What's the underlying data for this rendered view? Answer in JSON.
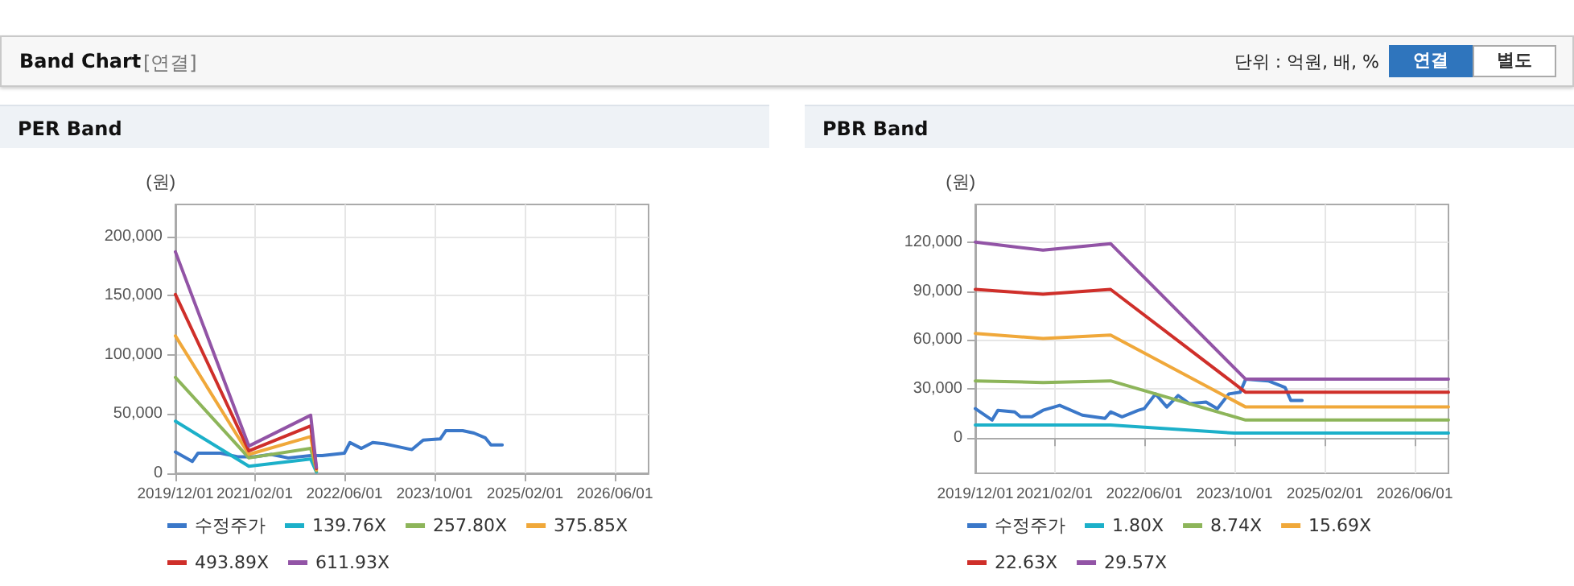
{
  "chart_data": [
    {
      "type": "other",
      "title": "Band Chart",
      "subtitle": "[연결]",
      "annotations": [
        "단위 : 억원, 배, %",
        "연결",
        "별도"
      ]
    },
    {
      "type": "line",
      "title": "PER Band",
      "ylabel": "(원)",
      "xlim": [
        "2019-12-01",
        "2026-12-01"
      ],
      "ylim": [
        0,
        227000
      ],
      "xticks": [
        {
          "value": "2019-12-01",
          "label": "2019/12/01"
        },
        {
          "value": "2021-02-01",
          "label": "2021/02/01"
        },
        {
          "value": "2022-06-01",
          "label": "2022/06/01"
        },
        {
          "value": "2023-10-01",
          "label": "2023/10/01"
        },
        {
          "value": "2025-02-01",
          "label": "2025/02/01"
        },
        {
          "value": "2026-06-01",
          "label": "2026/06/01"
        }
      ],
      "yticks": [
        0,
        {
          "value": 50000,
          "label": "50,000"
        },
        {
          "value": 100000,
          "label": "100,000"
        },
        {
          "value": 150000,
          "label": "150,000"
        },
        {
          "value": 200000,
          "label": "200,000"
        }
      ],
      "grid": true,
      "legend": "bottom",
      "marker": "none",
      "line_style": "solid",
      "series": [
        {
          "name": "수정주가",
          "color": "#3b78c9",
          "x": [
            "2019-12",
            "2020-03",
            "2020-04",
            "2020-08",
            "2020-11",
            "2021-02",
            "2021-05",
            "2021-08",
            "2021-12",
            "2022-02",
            "2022-06",
            "2022-07",
            "2022-09",
            "2022-11",
            "2023-01",
            "2023-04",
            "2023-06",
            "2023-08",
            "2023-11",
            "2023-12",
            "2024-03",
            "2024-05",
            "2024-07",
            "2024-08",
            "2024-10"
          ],
          "values": [
            18000,
            10000,
            17000,
            17000,
            14000,
            14000,
            16000,
            13000,
            15000,
            15000,
            17000,
            26000,
            21000,
            26000,
            25000,
            22000,
            20000,
            28000,
            29000,
            36000,
            36000,
            34000,
            30000,
            24000,
            24000
          ]
        },
        {
          "name": "139.76X",
          "color": "#1cb0c9",
          "x": [
            "2019-12",
            "2021-01",
            "2021-12",
            "2022-01"
          ],
          "values": [
            44000,
            6000,
            12000,
            1000
          ]
        },
        {
          "name": "257.80X",
          "color": "#8db55a",
          "x": [
            "2019-12",
            "2021-01",
            "2021-12",
            "2022-01"
          ],
          "values": [
            81000,
            13000,
            21000,
            2000
          ]
        },
        {
          "name": "375.85X",
          "color": "#f0a83a",
          "x": [
            "2019-12",
            "2021-01",
            "2021-12",
            "2022-01"
          ],
          "values": [
            116000,
            16000,
            31000,
            3000
          ]
        },
        {
          "name": "493.89X",
          "color": "#cf2f2a",
          "x": [
            "2019-12",
            "2021-01",
            "2021-12",
            "2022-01"
          ],
          "values": [
            151000,
            19000,
            40000,
            4000
          ]
        },
        {
          "name": "611.93X",
          "color": "#9254a6",
          "x": [
            "2019-12",
            "2021-01",
            "2021-12",
            "2022-01"
          ],
          "values": [
            187000,
            23000,
            49000,
            5000
          ]
        }
      ]
    },
    {
      "type": "line",
      "title": "PBR Band",
      "ylabel": "(원)",
      "xlim": [
        "2019-12-01",
        "2026-12-01"
      ],
      "ylim": [
        -21600,
        143000
      ],
      "xticks": [
        {
          "value": "2019-12-01",
          "label": "2019/12/01"
        },
        {
          "value": "2021-02-01",
          "label": "2021/02/01"
        },
        {
          "value": "2022-06-01",
          "label": "2022/06/01"
        },
        {
          "value": "2023-10-01",
          "label": "2023/10/01"
        },
        {
          "value": "2025-02-01",
          "label": "2025/02/01"
        },
        {
          "value": "2026-06-01",
          "label": "2026/06/01"
        }
      ],
      "yticks": [
        0,
        {
          "value": 30000,
          "label": "30,000"
        },
        {
          "value": 60000,
          "label": "60,000"
        },
        {
          "value": 90000,
          "label": "90,000"
        },
        {
          "value": 120000,
          "label": "120,000"
        }
      ],
      "grid": true,
      "legend": "bottom",
      "marker": "none",
      "line_style": "solid",
      "series": [
        {
          "name": "수정주가",
          "color": "#3b78c9",
          "x": [
            "2019-12",
            "2020-03",
            "2020-04",
            "2020-07",
            "2020-08",
            "2020-10",
            "2020-12",
            "2021-03",
            "2021-07",
            "2021-11",
            "2021-12",
            "2022-02",
            "2022-05",
            "2022-06",
            "2022-08",
            "2022-10",
            "2022-12",
            "2023-02",
            "2023-05",
            "2023-07",
            "2023-09",
            "2023-11",
            "2023-12",
            "2024-04",
            "2024-07",
            "2024-08",
            "2024-10"
          ],
          "values": [
            18000,
            11000,
            17000,
            16000,
            13000,
            13000,
            17000,
            20000,
            14000,
            12000,
            16000,
            13000,
            17000,
            18000,
            27000,
            19000,
            26000,
            21000,
            22000,
            18000,
            27000,
            28000,
            36000,
            35000,
            31000,
            23000,
            23000
          ]
        },
        {
          "name": "1.80X",
          "color": "#1cb0c9",
          "x": [
            "2019-12",
            "2021-12",
            "2023-10",
            "2026-12"
          ],
          "values": [
            8000,
            8000,
            3000,
            3000
          ]
        },
        {
          "name": "8.74X",
          "color": "#8db55a",
          "x": [
            "2019-12",
            "2020-12",
            "2021-12",
            "2023-12",
            "2026-12"
          ],
          "values": [
            35000,
            34000,
            35000,
            11000,
            11000
          ]
        },
        {
          "name": "15.69X",
          "color": "#f0a83a",
          "x": [
            "2019-12",
            "2020-12",
            "2021-12",
            "2023-12",
            "2026-12"
          ],
          "values": [
            64000,
            61000,
            63000,
            19000,
            19000
          ]
        },
        {
          "name": "22.63X",
          "color": "#cf2f2a",
          "x": [
            "2019-12",
            "2020-12",
            "2021-12",
            "2023-12",
            "2026-12"
          ],
          "values": [
            91000,
            88000,
            91000,
            28000,
            28000
          ]
        },
        {
          "name": "29.57X",
          "color": "#9254a6",
          "x": [
            "2019-12",
            "2020-12",
            "2021-12",
            "2023-12",
            "2026-12"
          ],
          "values": [
            120000,
            115000,
            119000,
            36000,
            36000
          ]
        }
      ]
    }
  ]
}
